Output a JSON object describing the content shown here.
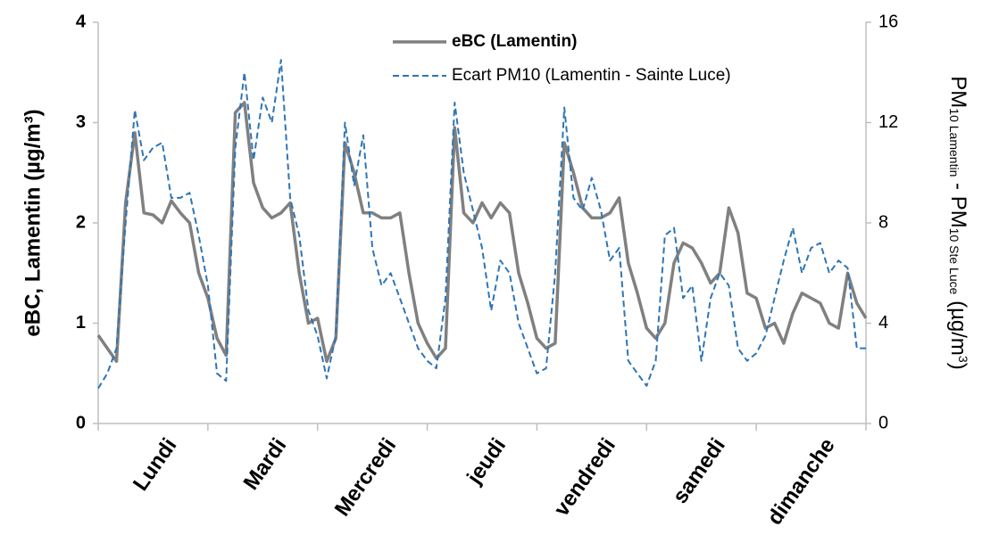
{
  "chart_data": {
    "type": "line",
    "categories": [
      "Lundi",
      "Mardi",
      "Mercredi",
      "jeudi",
      "vendredi",
      "samedi",
      "dimanche"
    ],
    "x": [
      0,
      2,
      4,
      6,
      8,
      10,
      12,
      14,
      16,
      18,
      20,
      22,
      24,
      26,
      28,
      30,
      32,
      34,
      36,
      38,
      40,
      42,
      44,
      46,
      48,
      50,
      52,
      54,
      56,
      58,
      60,
      62,
      64,
      66,
      68,
      70,
      72,
      74,
      76,
      78,
      80,
      82,
      84,
      86,
      88,
      90,
      92,
      94,
      96,
      98,
      100,
      102,
      104,
      106,
      108,
      110,
      112,
      114,
      116,
      118,
      120,
      122,
      124,
      126,
      128,
      130,
      132,
      134,
      136,
      138,
      140,
      142,
      144,
      146,
      148,
      150,
      152,
      154,
      156,
      158,
      160,
      162,
      164,
      166,
      168
    ],
    "xlim": [
      0,
      168
    ],
    "xticks": [
      0,
      24,
      48,
      72,
      96,
      120,
      144,
      168
    ],
    "ylabel": "eBC, Lamentin (µg/m³)",
    "y2label": [
      "PM",
      "10 Lamentin",
      " - PM",
      "10 Ste Luce",
      " (µg/m",
      "3",
      ")"
    ],
    "ylim": [
      0,
      4
    ],
    "yticks": [
      0,
      1,
      2,
      3,
      4
    ],
    "y2lim": [
      0,
      16
    ],
    "y2ticks": [
      0,
      4,
      8,
      12,
      16
    ],
    "series": [
      {
        "name": "eBC (Lamentin)",
        "color": "#808080",
        "style": "solid",
        "values": [
          0.88,
          0.75,
          0.62,
          2.2,
          2.9,
          2.1,
          2.08,
          2.0,
          2.22,
          2.1,
          2.0,
          1.5,
          1.25,
          0.85,
          0.68,
          3.1,
          3.2,
          2.4,
          2.15,
          2.05,
          2.1,
          2.2,
          1.5,
          1.0,
          1.05,
          0.62,
          0.85,
          2.8,
          2.5,
          2.1,
          2.1,
          2.05,
          2.05,
          2.1,
          1.5,
          1.0,
          0.8,
          0.65,
          0.75,
          2.95,
          2.1,
          2.0,
          2.2,
          2.05,
          2.2,
          2.1,
          1.5,
          1.2,
          0.85,
          0.75,
          0.8,
          2.8,
          2.5,
          2.15,
          2.05,
          2.05,
          2.1,
          2.25,
          1.6,
          1.3,
          0.95,
          0.85,
          1.0,
          1.6,
          1.8,
          1.75,
          1.6,
          1.4,
          1.5,
          2.15,
          1.9,
          1.3,
          1.25,
          0.95,
          1.0,
          0.8,
          1.1,
          1.3,
          1.25,
          1.2,
          1.0,
          0.95,
          1.5,
          1.2,
          1.05
        ]
      },
      {
        "name": "Ecart PM10 (Lamentin - Sainte Luce)",
        "color": "#2e75b6",
        "style": "dashed",
        "axis": "y2",
        "values": [
          1.4,
          2.0,
          3.0,
          8.0,
          12.5,
          10.5,
          11.0,
          11.2,
          9.0,
          9.0,
          9.2,
          7.5,
          5.5,
          2.0,
          1.7,
          11.0,
          14.0,
          10.5,
          13.0,
          12.0,
          14.5,
          9.0,
          7.5,
          4.5,
          3.5,
          1.8,
          3.5,
          12.0,
          9.5,
          11.5,
          7.0,
          5.5,
          6.0,
          5.0,
          4.0,
          3.0,
          2.5,
          2.2,
          5.0,
          12.8,
          10.0,
          8.5,
          7.0,
          4.5,
          6.5,
          6.0,
          4.0,
          3.0,
          2.0,
          2.2,
          6.0,
          12.6,
          9.0,
          8.5,
          9.8,
          8.5,
          6.5,
          7.0,
          2.5,
          2.0,
          1.5,
          2.5,
          7.5,
          7.8,
          5.0,
          5.5,
          2.5,
          5.0,
          6.0,
          5.5,
          3.0,
          2.5,
          2.8,
          3.5,
          5.0,
          6.5,
          7.8,
          6.0,
          7.0,
          7.2,
          6.0,
          6.5,
          6.2,
          3.0,
          3.0
        ]
      }
    ],
    "legend": "top-center"
  }
}
